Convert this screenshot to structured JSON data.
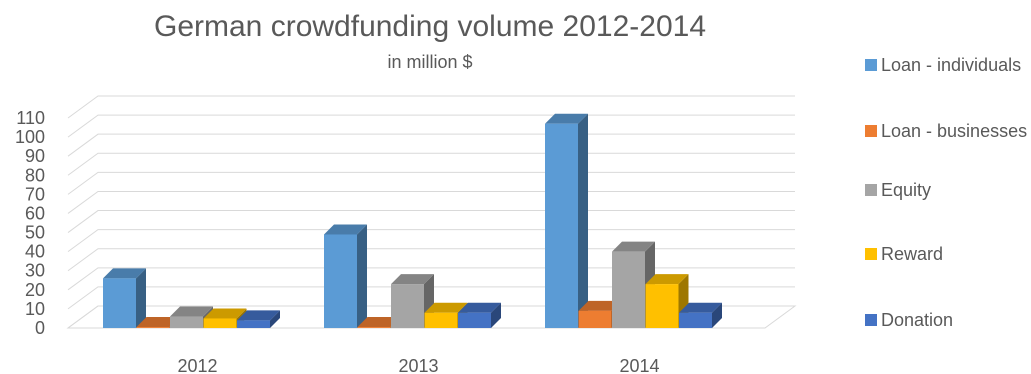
{
  "chart_data": {
    "type": "bar",
    "title": "German crowdfunding volume 2012-2014",
    "subtitle": "in million $",
    "categories": [
      "2012",
      "2013",
      "2014"
    ],
    "series": [
      {
        "name": "Loan - individuals",
        "color": "#5B9BD5",
        "values": [
          26,
          49,
          107
        ]
      },
      {
        "name": "Loan - businesses",
        "color": "#ED7D31",
        "values": [
          0.5,
          0.5,
          9
        ]
      },
      {
        "name": "Equity",
        "color": "#A5A5A5",
        "values": [
          6,
          23,
          40
        ]
      },
      {
        "name": "Reward",
        "color": "#FFC000",
        "values": [
          5,
          8,
          23
        ]
      },
      {
        "name": "Donation",
        "color": "#4472C4",
        "values": [
          4,
          8,
          8
        ]
      }
    ],
    "ylim": [
      0,
      110
    ],
    "yticks": [
      0,
      10,
      20,
      30,
      40,
      50,
      60,
      70,
      80,
      90,
      100,
      110
    ],
    "grid": true,
    "legend_position": "right"
  }
}
